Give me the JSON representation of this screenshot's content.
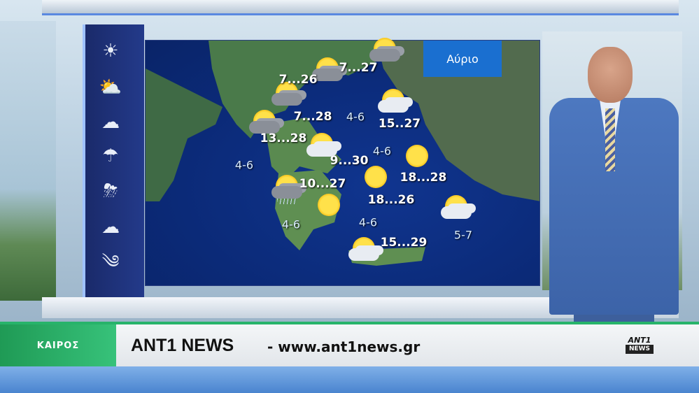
{
  "map": {
    "day_label": "Αύριο",
    "cities": [
      {
        "temp": "7...26",
        "icon": "sun-cloud-storm-icon"
      },
      {
        "temp": "7...27",
        "icon": "sun-cloud-storm-icon"
      },
      {
        "temp": "7...28",
        "icon": "sun-cloud-storm-icon"
      },
      {
        "temp": "15..27",
        "icon": "sun-cloud-icon"
      },
      {
        "temp": "13...28",
        "icon": "sun-cloud-storm-icon"
      },
      {
        "temp": "9...30",
        "icon": "sun-cloud-icon"
      },
      {
        "temp": "18...28",
        "icon": "sun-icon"
      },
      {
        "temp": "10...27",
        "icon": "storm-rain-icon"
      },
      {
        "temp": "18...26",
        "icon": "sun-icon"
      },
      {
        "temp": "15...29",
        "icon": "sun-cloud-icon"
      }
    ],
    "wind": [
      "4-6",
      "4-6",
      "4-6",
      "4-6",
      "4-6",
      "5-7"
    ]
  },
  "sidebar": {
    "icons": [
      "sun-icon",
      "sun-cloud-icon",
      "cloud-icon",
      "rain-icon",
      "thunderstorm-icon",
      "clouds-icon",
      "wind-cloud-icon"
    ]
  },
  "ticker": {
    "section": "ΚΑΙΡΟΣ",
    "title": "ANT1 NEWS",
    "url": "- www.ant1news.gr",
    "logo_top": "ANT1",
    "logo_bottom": "NEWS",
    "accent": "#27b36a"
  }
}
